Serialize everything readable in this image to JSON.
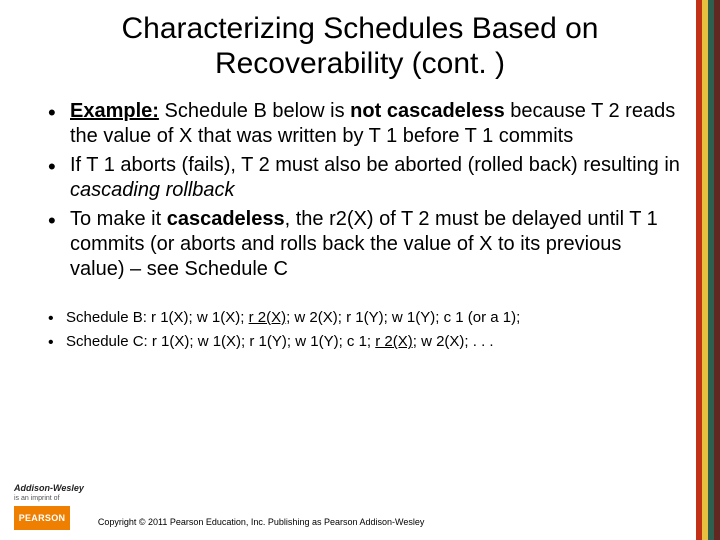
{
  "title": "Characterizing Schedules Based on Recoverability (cont. )",
  "main_bullets": [
    "<span class='u b'>Example:</span> Schedule B below is <span class='b'>not cascadeless</span> because T 2 reads the value of X that was written by T 1 before T 1 commits",
    "If T 1 aborts (fails), T 2 must also be aborted (rolled back) resulting in <span class='i'>cascading rollback</span>",
    "To make it <span class='b'>cascadeless</span>, the r2(X) of T 2 must be delayed until T 1 commits (or aborts and rolls back the value of X to its previous value) – see Schedule C"
  ],
  "sub_bullets": [
    "Schedule B: r 1(X); w 1(X); <span class='u'>r 2(X)</span>; w 2(X); r 1(Y); w 1(Y); c 1 (or a 1);",
    "Schedule C: r 1(X); w 1(X); r 1(Y); w 1(Y); c 1; <span class='u'>r 2(X)</span>; w 2(X); . . ."
  ],
  "footer": {
    "aw_name": "Addison-Wesley",
    "aw_imprint": "is an imprint of",
    "pearson": "PEARSON",
    "copyright": "Copyright © 2011 Pearson Education, Inc. Publishing as Pearson Addison-Wesley"
  }
}
